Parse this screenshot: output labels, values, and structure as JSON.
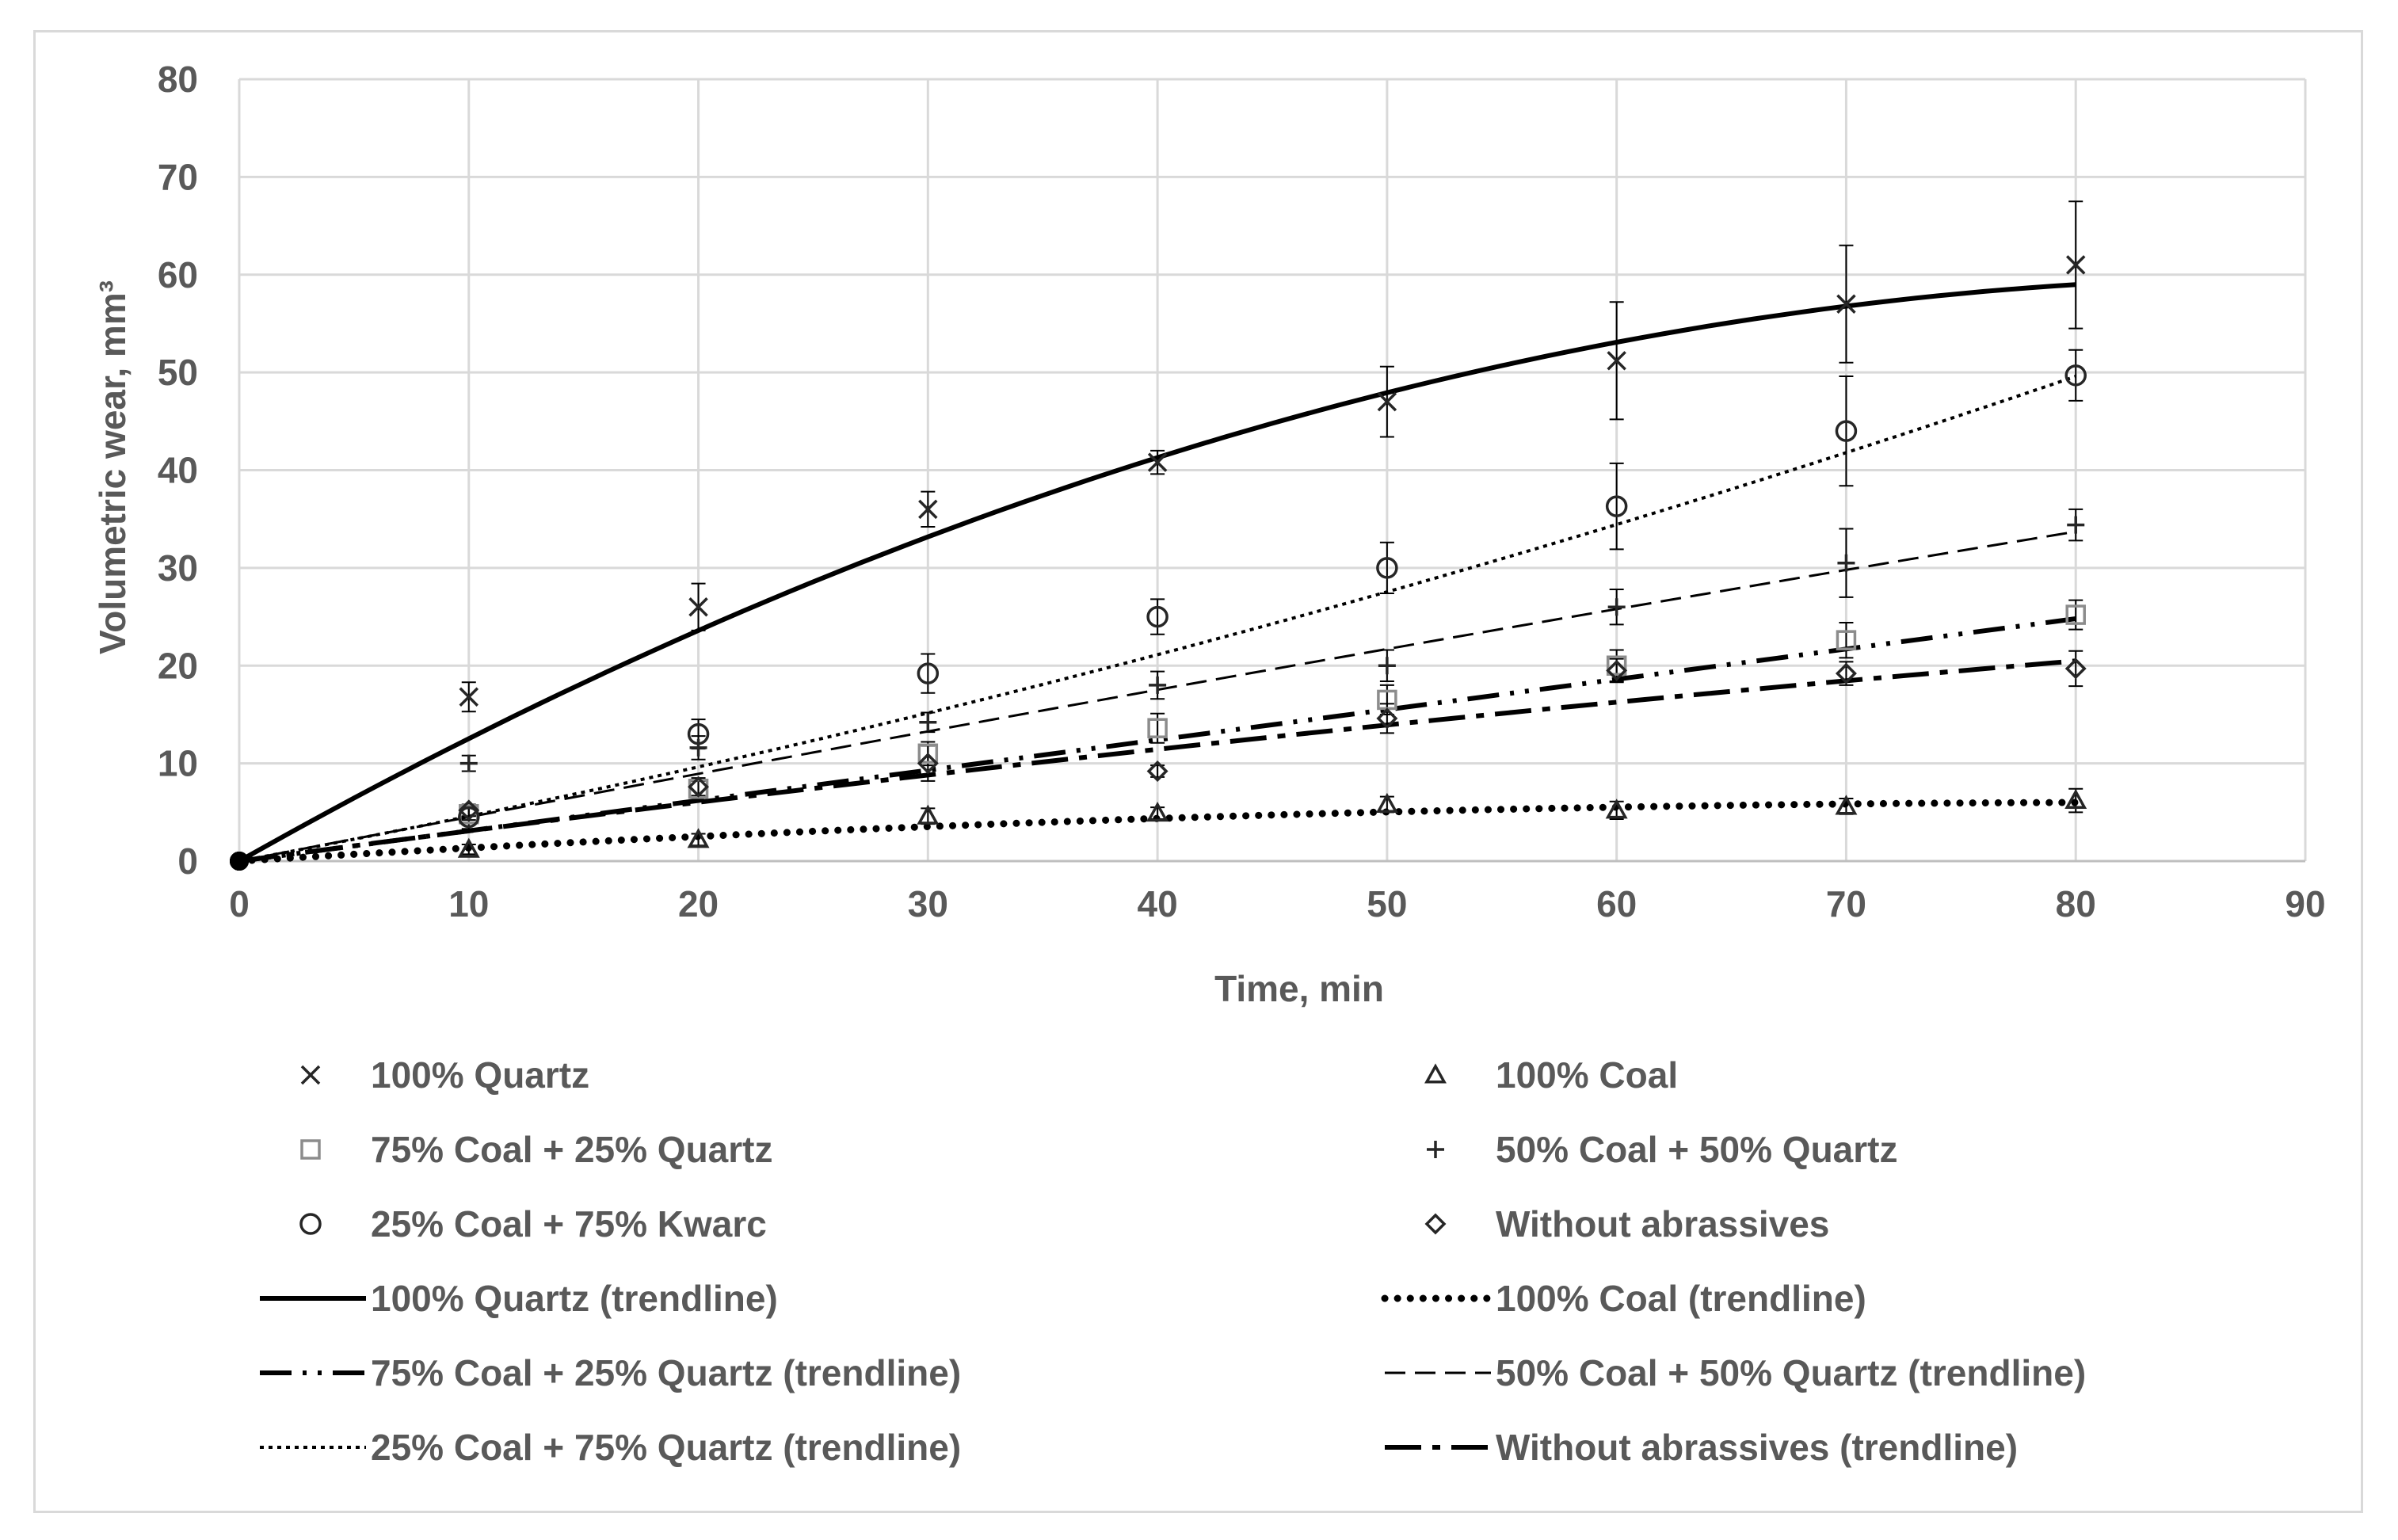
{
  "chart_data": {
    "type": "scatter",
    "title": "",
    "xlabel": "Time, min",
    "ylabel": "Volumetric wear, mm³",
    "xlim": [
      0,
      90
    ],
    "ylim": [
      0,
      80
    ],
    "xticks": [
      0,
      10,
      20,
      30,
      40,
      50,
      60,
      70,
      80,
      90
    ],
    "yticks": [
      0,
      10,
      20,
      30,
      40,
      50,
      60,
      70,
      80
    ],
    "grid": true,
    "legend_position": "bottom",
    "series": [
      {
        "name": "100% Quartz",
        "marker": "x",
        "color": "#262626",
        "x": [
          0,
          10,
          20,
          30,
          40,
          50,
          60,
          70,
          80
        ],
        "y": [
          0,
          16.8,
          26,
          36,
          40.8,
          47,
          51.2,
          57,
          61
        ],
        "err": [
          0,
          1.5,
          2.4,
          1.8,
          1.2,
          3.6,
          6,
          6,
          6.5
        ]
      },
      {
        "name": "100% Coal",
        "marker": "triangle",
        "color": "#262626",
        "x": [
          0,
          10,
          20,
          30,
          40,
          50,
          60,
          70,
          80
        ],
        "y": [
          0,
          1.2,
          2.2,
          4.6,
          4.9,
          5.8,
          5.2,
          5.6,
          6.2
        ],
        "err": [
          0,
          0.5,
          0.6,
          0.8,
          0.6,
          0.8,
          0.9,
          0.8,
          1.2
        ]
      },
      {
        "name": "75% Coal + 25% Quartz",
        "marker": "square",
        "color": "#8c8c8c",
        "x": [
          0,
          10,
          20,
          30,
          40,
          50,
          60,
          70,
          80
        ],
        "y": [
          0,
          4.8,
          7.4,
          11,
          13.6,
          16.5,
          20,
          22.6,
          25.2
        ],
        "err": [
          0,
          0.6,
          0.8,
          1.2,
          1.5,
          1.5,
          1.6,
          1.8,
          1.5
        ]
      },
      {
        "name": "50% Coal + 50% Quartz",
        "marker": "plus",
        "color": "#262626",
        "x": [
          0,
          10,
          20,
          30,
          40,
          50,
          60,
          70,
          80
        ],
        "y": [
          0,
          10,
          11.6,
          14.2,
          18,
          20,
          26,
          30.5,
          34.4
        ],
        "err": [
          0,
          0.8,
          1.2,
          1,
          1.4,
          1.6,
          1.8,
          3.5,
          1.6
        ]
      },
      {
        "name": "25% Coal + 75% Kwarc",
        "marker": "circle",
        "color": "#262626",
        "x": [
          0,
          10,
          20,
          30,
          40,
          50,
          60,
          70,
          80
        ],
        "y": [
          0,
          4.5,
          13,
          19.2,
          25,
          30,
          36.3,
          44,
          49.7
        ],
        "err": [
          0,
          1.2,
          1.5,
          2,
          1.8,
          2.6,
          4.4,
          5.6,
          2.6
        ]
      },
      {
        "name": "Without abrassives",
        "marker": "diamond",
        "color": "#262626",
        "x": [
          0,
          10,
          20,
          30,
          40,
          50,
          60,
          70,
          80
        ],
        "y": [
          0,
          5.2,
          7.6,
          10,
          9.2,
          14.6,
          19.5,
          19.2,
          19.7
        ],
        "err": [
          0,
          0.6,
          0.9,
          1.8,
          0.6,
          1.5,
          1.2,
          1.2,
          1.8
        ]
      }
    ],
    "trendlines": [
      {
        "name": "100% Quartz (trendline)",
        "style": "solid",
        "coef": [
          -0.00737,
          1.327,
          0
        ]
      },
      {
        "name": "100% Coal (trendline)",
        "style": "round-dot",
        "coef": [
          -0.00085,
          0.143,
          0
        ]
      },
      {
        "name": "75% Coal + 25% Quartz (trendline)",
        "style": "long-dash-dot-dot",
        "coef": [
          0,
          0.31,
          0
        ]
      },
      {
        "name": "50% Coal + 50% Quartz (trendline)",
        "style": "dash",
        "coef": [
          -0.00042,
          0.455,
          0
        ]
      },
      {
        "name": "25% Coal + 75% Quartz (trendline)",
        "style": "square-dot",
        "coef": [
          0.0023,
          0.436,
          0
        ]
      },
      {
        "name": "Without abrassives (trendline)",
        "style": "long-dash-dot",
        "coef": [
          -0.00075,
          0.316,
          0
        ]
      }
    ]
  }
}
